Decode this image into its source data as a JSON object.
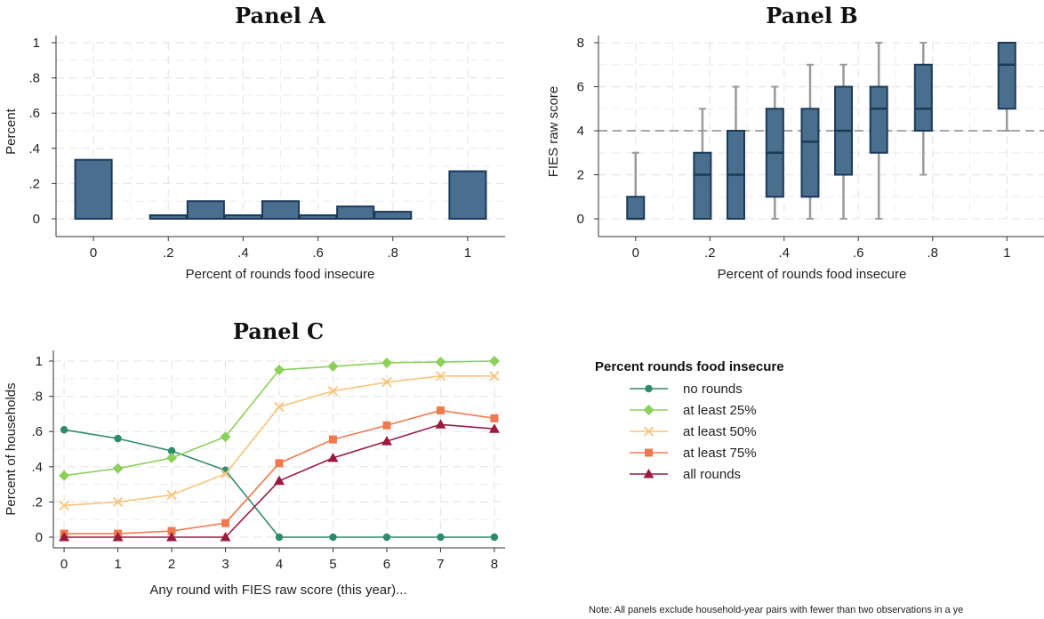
{
  "panels": {
    "a": {
      "title": "Panel A",
      "xlabel": "Percent of rounds food insecure",
      "ylabel": "Percent"
    },
    "b": {
      "title": "Panel B",
      "xlabel": "Percent of rounds food insecure",
      "ylabel": "FIES raw score"
    },
    "c": {
      "title": "Panel C",
      "xlabel": "Any round with FIES raw score (this year)...",
      "ylabel": "Percent of households"
    }
  },
  "legend": {
    "title": "Percent rounds food insecure"
  },
  "note": "Note: All panels exclude household-year pairs with fewer than two observations in a ye",
  "colors": {
    "bar_fill": "#4a6f8e",
    "bar_edge": "#1b3a59",
    "whisker": "#9a9a9a"
  },
  "chart_data": [
    {
      "type": "bar",
      "title": "Panel A",
      "xlabel": "Percent of rounds food insecure",
      "ylabel": "Percent",
      "xlim": [
        -0.1,
        1.1
      ],
      "ylim": [
        0,
        1
      ],
      "x_ticks": [
        0,
        0.2,
        0.4,
        0.6,
        0.8,
        1
      ],
      "x_tick_labels": [
        "0",
        ".2",
        ".4",
        ".6",
        ".8",
        "1"
      ],
      "y_ticks": [
        0,
        0.2,
        0.4,
        0.6,
        0.8,
        1
      ],
      "y_tick_labels": [
        "0",
        ".2",
        ".4",
        ".6",
        ".8",
        "1"
      ],
      "bars": [
        {
          "x0": -0.05,
          "x1": 0.05,
          "value": 0.335
        },
        {
          "x0": 0.15,
          "x1": 0.25,
          "value": 0.02
        },
        {
          "x0": 0.25,
          "x1": 0.35,
          "value": 0.1
        },
        {
          "x0": 0.35,
          "x1": 0.45,
          "value": 0.02
        },
        {
          "x0": 0.45,
          "x1": 0.55,
          "value": 0.1
        },
        {
          "x0": 0.55,
          "x1": 0.65,
          "value": 0.02
        },
        {
          "x0": 0.65,
          "x1": 0.75,
          "value": 0.07
        },
        {
          "x0": 0.75,
          "x1": 0.85,
          "value": 0.04
        },
        {
          "x0": 0.95,
          "x1": 1.05,
          "value": 0.27
        }
      ],
      "grid": true
    },
    {
      "type": "box",
      "title": "Panel B",
      "xlabel": "Percent of rounds food insecure",
      "ylabel": "FIES raw score",
      "xlim": [
        -0.1,
        1.1
      ],
      "ylim": [
        0,
        8
      ],
      "x_ticks": [
        0,
        0.2,
        0.4,
        0.6,
        0.8,
        1
      ],
      "x_tick_labels": [
        "0",
        ".2",
        ".4",
        ".6",
        ".8",
        "1"
      ],
      "y_ticks": [
        0,
        2,
        4,
        6,
        8
      ],
      "y_tick_labels": [
        "0",
        "2",
        "4",
        "6",
        "8"
      ],
      "reference_line": 4,
      "boxes": [
        {
          "x": 0.0,
          "min": 0,
          "q1": 0,
          "median": 0,
          "q3": 1,
          "max": 3
        },
        {
          "x": 0.18,
          "min": 0,
          "q1": 0,
          "median": 2,
          "q3": 3,
          "max": 5
        },
        {
          "x": 0.27,
          "min": 0,
          "q1": 0,
          "median": 2,
          "q3": 4,
          "max": 6
        },
        {
          "x": 0.375,
          "min": 0,
          "q1": 1,
          "median": 3,
          "q3": 5,
          "max": 6
        },
        {
          "x": 0.47,
          "min": 0,
          "q1": 1,
          "median": 3.5,
          "q3": 5,
          "max": 7
        },
        {
          "x": 0.56,
          "min": 0,
          "q1": 2,
          "median": 4,
          "q3": 6,
          "max": 7
        },
        {
          "x": 0.655,
          "min": 0,
          "q1": 3,
          "median": 5,
          "q3": 6,
          "max": 8
        },
        {
          "x": 0.775,
          "min": 2,
          "q1": 4,
          "median": 5,
          "q3": 7,
          "max": 8
        },
        {
          "x": 1.0,
          "min": 4,
          "q1": 5,
          "median": 7,
          "q3": 8,
          "max": 8
        }
      ],
      "grid": true
    },
    {
      "type": "line",
      "title": "Panel C",
      "xlabel": "Any round with FIES raw score (this year)...",
      "ylabel": "Percent of households",
      "x": [
        0,
        1,
        2,
        3,
        4,
        5,
        6,
        7,
        8
      ],
      "xlim": [
        -0.2,
        8.2
      ],
      "ylim": [
        0,
        1
      ],
      "y_ticks": [
        0,
        0.2,
        0.4,
        0.6,
        0.8,
        1
      ],
      "y_tick_labels": [
        "0",
        ".2",
        ".4",
        ".6",
        ".8",
        "1"
      ],
      "legend_position": "right",
      "series": [
        {
          "name": "no rounds",
          "color": "#2e8b6a",
          "marker": "circle",
          "values": [
            0.61,
            0.56,
            0.49,
            0.38,
            0.0,
            0.0,
            0.0,
            0.0,
            0.0
          ]
        },
        {
          "name": "at least 25%",
          "color": "#8ccf5a",
          "marker": "diamond",
          "values": [
            0.35,
            0.39,
            0.45,
            0.57,
            0.95,
            0.97,
            0.99,
            0.995,
            1.0
          ]
        },
        {
          "name": "at least 50%",
          "color": "#f7c47a",
          "marker": "x",
          "values": [
            0.18,
            0.2,
            0.24,
            0.36,
            0.74,
            0.83,
            0.88,
            0.915,
            0.915
          ]
        },
        {
          "name": "at least 75%",
          "color": "#f07a4f",
          "marker": "square",
          "values": [
            0.02,
            0.02,
            0.035,
            0.08,
            0.42,
            0.555,
            0.635,
            0.72,
            0.675
          ]
        },
        {
          "name": "all rounds",
          "color": "#9b1b3e",
          "marker": "triangle",
          "values": [
            0.0,
            0.0,
            0.0,
            0.0,
            0.32,
            0.45,
            0.545,
            0.64,
            0.615
          ]
        }
      ],
      "grid": true
    }
  ]
}
